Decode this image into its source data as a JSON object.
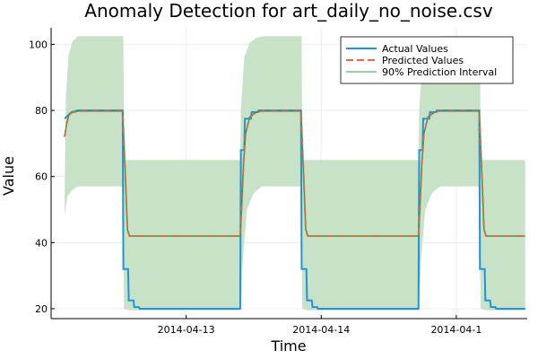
{
  "chart_data": {
    "type": "line",
    "title": "Anomaly Detection for art_daily_no_noise.csv",
    "xlabel": "Time",
    "ylabel": "Value",
    "xlim": [
      0,
      3.525
    ],
    "ylim": [
      17,
      105
    ],
    "grid": true,
    "x_tick_positions": [
      1,
      2,
      3
    ],
    "x_tick_labels": [
      "2014-04-13",
      "2014-04-14",
      "2014-04-1"
    ],
    "y_ticks": [
      20,
      40,
      60,
      80,
      100
    ],
    "y_tick_labels": [
      "20",
      "40",
      "60",
      "80",
      "100"
    ],
    "legend": {
      "position": "top-right",
      "entries": [
        "Actual Values",
        "Predicted Values",
        "90% Prediction Interval"
      ]
    },
    "colors": {
      "actual": "#1f94d8",
      "predicted": "#e26a42",
      "interval_fill": "#c8e2c8",
      "interval_line": "#3a9b3a",
      "grid": "#ebebeb",
      "axis": "#000000"
    },
    "series": [
      {
        "name": "Actual Values",
        "style": "step",
        "points": [
          [
            0.1,
            77.5
          ],
          [
            0.15,
            79.5
          ],
          [
            0.2,
            80
          ],
          [
            0.53,
            80
          ],
          [
            0.535,
            32
          ],
          [
            0.57,
            32
          ],
          [
            0.575,
            22.5
          ],
          [
            0.61,
            22.5
          ],
          [
            0.615,
            20.5
          ],
          [
            0.65,
            20.5
          ],
          [
            0.655,
            20
          ],
          [
            1.4,
            20
          ],
          [
            1.405,
            68
          ],
          [
            1.43,
            68
          ],
          [
            1.435,
            77.5
          ],
          [
            1.48,
            77.5
          ],
          [
            1.485,
            79.5
          ],
          [
            1.53,
            79.5
          ],
          [
            1.535,
            80
          ],
          [
            1.85,
            80
          ],
          [
            1.855,
            32
          ],
          [
            1.89,
            32
          ],
          [
            1.895,
            22.5
          ],
          [
            1.93,
            22.5
          ],
          [
            1.935,
            20.5
          ],
          [
            1.97,
            20.5
          ],
          [
            1.975,
            20
          ],
          [
            2.72,
            20
          ],
          [
            2.725,
            68
          ],
          [
            2.75,
            68
          ],
          [
            2.755,
            77.5
          ],
          [
            2.8,
            77.5
          ],
          [
            2.805,
            79.5
          ],
          [
            2.85,
            79.5
          ],
          [
            2.855,
            80
          ],
          [
            3.17,
            80
          ],
          [
            3.175,
            32
          ],
          [
            3.21,
            32
          ],
          [
            3.215,
            22.5
          ],
          [
            3.25,
            22.5
          ],
          [
            3.255,
            20.5
          ],
          [
            3.29,
            20.5
          ],
          [
            3.295,
            20
          ],
          [
            3.51,
            20
          ]
        ]
      },
      {
        "name": "Predicted Values",
        "points": [
          [
            0.1,
            72
          ],
          [
            0.115,
            76
          ],
          [
            0.13,
            78.5
          ],
          [
            0.15,
            79.3
          ],
          [
            0.2,
            79.8
          ],
          [
            0.53,
            79.8
          ],
          [
            0.55,
            60
          ],
          [
            0.565,
            44
          ],
          [
            0.58,
            42
          ],
          [
            1.4,
            42
          ],
          [
            1.41,
            50
          ],
          [
            1.425,
            64
          ],
          [
            1.44,
            73
          ],
          [
            1.47,
            78
          ],
          [
            1.52,
            79.5
          ],
          [
            1.56,
            79.8
          ],
          [
            1.85,
            79.8
          ],
          [
            1.87,
            60
          ],
          [
            1.885,
            44
          ],
          [
            1.9,
            42
          ],
          [
            2.72,
            42
          ],
          [
            2.73,
            50
          ],
          [
            2.745,
            64
          ],
          [
            2.76,
            73
          ],
          [
            2.79,
            78
          ],
          [
            2.84,
            79.5
          ],
          [
            2.88,
            79.8
          ],
          [
            3.17,
            79.8
          ],
          [
            3.19,
            60
          ],
          [
            3.205,
            44
          ],
          [
            3.22,
            42
          ],
          [
            3.51,
            42
          ]
        ]
      },
      {
        "name": "90% Prediction Interval",
        "style": "band",
        "upper": [
          [
            0.1,
            55
          ],
          [
            0.11,
            85
          ],
          [
            0.13,
            97
          ],
          [
            0.16,
            101
          ],
          [
            0.2,
            102.5
          ],
          [
            0.535,
            102.5
          ],
          [
            0.54,
            65
          ],
          [
            1.4,
            65
          ],
          [
            1.405,
            80
          ],
          [
            1.43,
            96
          ],
          [
            1.47,
            100.5
          ],
          [
            1.52,
            102
          ],
          [
            1.58,
            102.5
          ],
          [
            1.855,
            102.5
          ],
          [
            1.86,
            65
          ],
          [
            2.72,
            65
          ],
          [
            2.725,
            80
          ],
          [
            2.75,
            96
          ],
          [
            2.79,
            100.5
          ],
          [
            2.84,
            102
          ],
          [
            2.9,
            102.5
          ],
          [
            3.175,
            102.5
          ],
          [
            3.18,
            65
          ],
          [
            3.51,
            65
          ]
        ],
        "lower": [
          [
            0.1,
            48
          ],
          [
            0.12,
            54
          ],
          [
            0.16,
            56
          ],
          [
            0.2,
            57
          ],
          [
            0.53,
            57
          ],
          [
            0.54,
            20
          ],
          [
            0.58,
            19.5
          ],
          [
            1.4,
            19.5
          ],
          [
            1.42,
            35
          ],
          [
            1.45,
            50
          ],
          [
            1.5,
            55
          ],
          [
            1.56,
            57
          ],
          [
            1.85,
            57
          ],
          [
            1.86,
            20
          ],
          [
            1.9,
            19.5
          ],
          [
            2.72,
            19.5
          ],
          [
            2.74,
            35
          ],
          [
            2.77,
            50
          ],
          [
            2.82,
            55
          ],
          [
            2.88,
            57
          ],
          [
            3.17,
            57
          ],
          [
            3.18,
            20
          ],
          [
            3.22,
            19.5
          ],
          [
            3.51,
            19.5
          ]
        ]
      }
    ]
  }
}
